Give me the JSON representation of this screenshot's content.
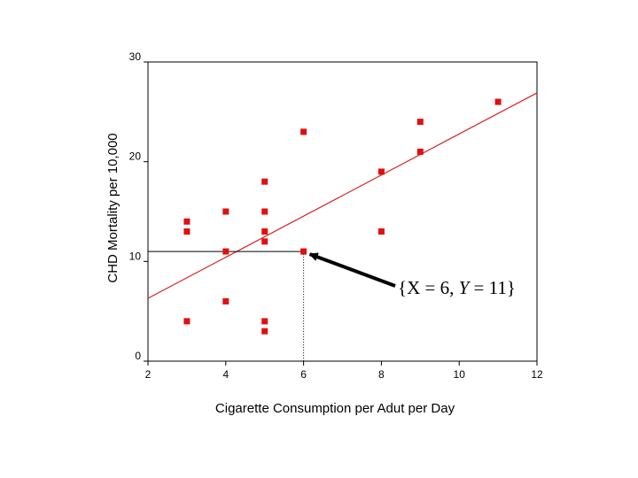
{
  "chart_data": {
    "type": "scatter",
    "xlabel": "Cigarette Consumption per Adut per Day",
    "ylabel": "CHD Mortality per 10,000",
    "xlim": [
      2,
      12
    ],
    "ylim": [
      0,
      30
    ],
    "x_ticks": [
      "2",
      "4",
      "6",
      "8",
      "10",
      "12"
    ],
    "y_ticks": [
      "0",
      "10",
      "20",
      "30"
    ],
    "grid": false,
    "marker_color": "#e01010",
    "line_color": "#d42020",
    "points": [
      {
        "x": 3,
        "y": 14
      },
      {
        "x": 3,
        "y": 13
      },
      {
        "x": 3,
        "y": 4
      },
      {
        "x": 4,
        "y": 15
      },
      {
        "x": 4,
        "y": 11
      },
      {
        "x": 4,
        "y": 6
      },
      {
        "x": 5,
        "y": 18
      },
      {
        "x": 5,
        "y": 15
      },
      {
        "x": 5,
        "y": 13
      },
      {
        "x": 5,
        "y": 12
      },
      {
        "x": 5,
        "y": 4
      },
      {
        "x": 5,
        "y": 3
      },
      {
        "x": 6,
        "y": 23
      },
      {
        "x": 6,
        "y": 11
      },
      {
        "x": 8,
        "y": 19
      },
      {
        "x": 8,
        "y": 13
      },
      {
        "x": 9,
        "y": 24
      },
      {
        "x": 9,
        "y": 21
      },
      {
        "x": 11,
        "y": 26
      }
    ],
    "regression_line": {
      "x": [
        2,
        12
      ],
      "y": [
        6.3,
        26.9
      ]
    },
    "highlight": {
      "x": 6,
      "y": 11
    },
    "annotation": {
      "prefix": "{X = 6, ",
      "y_var": "Y",
      "suffix": " = 11}"
    }
  }
}
